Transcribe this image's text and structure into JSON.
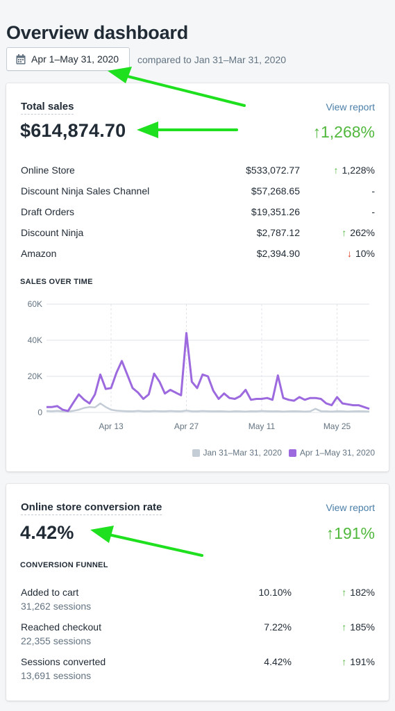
{
  "page": {
    "title": "Overview dashboard"
  },
  "date_range": {
    "selected": "Apr 1–May 31, 2020",
    "comparison": "compared to Jan 31–Mar 31, 2020",
    "icon": "calendar-icon"
  },
  "total_sales": {
    "title": "Total sales",
    "view_report": "View report",
    "value": "$614,874.70",
    "change": "1,268%",
    "change_direction": "up",
    "rows": [
      {
        "label": "Online Store",
        "value": "$533,072.77",
        "change": "1,228%",
        "direction": "up"
      },
      {
        "label": "Discount Ninja Sales Channel",
        "value": "$57,268.65",
        "change": "-",
        "direction": "none"
      },
      {
        "label": "Draft Orders",
        "value": "$19,351.26",
        "change": "-",
        "direction": "none"
      },
      {
        "label": "Discount Ninja",
        "value": "$2,787.12",
        "change": "262%",
        "direction": "up"
      },
      {
        "label": "Amazon",
        "value": "$2,394.90",
        "change": "10%",
        "direction": "down"
      }
    ]
  },
  "sales_over_time": {
    "heading": "SALES OVER TIME",
    "legend": {
      "previous": "Jan 31–Mar 31, 2020",
      "current": "Apr 1–May 31, 2020"
    }
  },
  "chart_data": {
    "type": "line",
    "ylabel": "",
    "xlabel": "",
    "ylim": [
      0,
      60000
    ],
    "y_ticks": [
      "0",
      "20K",
      "40K",
      "60K"
    ],
    "x_ticks": [
      {
        "label": "Apr 13",
        "index": 12
      },
      {
        "label": "Apr 27",
        "index": 26
      },
      {
        "label": "May 11",
        "index": 40
      },
      {
        "label": "May 25",
        "index": 54
      }
    ],
    "grid": true,
    "legend_position": "bottom-right",
    "series": [
      {
        "name": "Apr 1–May 31, 2020",
        "color": "#9c6ade",
        "values": [
          3000,
          3000,
          3500,
          1500,
          800,
          5500,
          10000,
          7000,
          5000,
          10000,
          21000,
          13000,
          13500,
          22000,
          28500,
          21000,
          13500,
          11000,
          7500,
          10000,
          21500,
          17000,
          10500,
          12500,
          11000,
          9500,
          44000,
          17000,
          13500,
          21000,
          20000,
          12000,
          7500,
          10500,
          8000,
          7500,
          9000,
          12500,
          7000,
          7500,
          7500,
          8000,
          7000,
          20500,
          8000,
          7000,
          6500,
          8500,
          7000,
          8000,
          8000,
          7500,
          5000,
          4000,
          8500,
          5000,
          4500,
          4000,
          4000,
          3000,
          2000
        ]
      },
      {
        "name": "Jan 31–Mar 31, 2020",
        "color": "#c4cdd5",
        "values": [
          800,
          700,
          900,
          600,
          500,
          900,
          1500,
          2500,
          3000,
          2800,
          5000,
          3000,
          1500,
          1000,
          800,
          700,
          600,
          900,
          700,
          600,
          800,
          700,
          600,
          800,
          700,
          600,
          1000,
          700,
          600,
          800,
          700,
          600,
          700,
          600,
          500,
          700,
          600,
          500,
          700,
          600,
          800,
          700,
          600,
          700,
          500,
          600,
          700,
          600,
          500,
          600,
          2000,
          700,
          600,
          500,
          700,
          600,
          500,
          600,
          700,
          600,
          500
        ]
      }
    ]
  },
  "conversion": {
    "title": "Online store conversion rate",
    "view_report": "View report",
    "value": "4.42%",
    "change": "191%",
    "change_direction": "up",
    "funnel_heading": "CONVERSION FUNNEL",
    "rows": [
      {
        "label": "Added to cart",
        "sessions": "31,262 sessions",
        "value": "10.10%",
        "change": "182%",
        "direction": "up"
      },
      {
        "label": "Reached checkout",
        "sessions": "22,355 sessions",
        "value": "7.22%",
        "change": "185%",
        "direction": "up"
      },
      {
        "label": "Sessions converted",
        "sessions": "13,691 sessions",
        "value": "4.42%",
        "change": "191%",
        "direction": "up"
      }
    ]
  },
  "colors": {
    "positive": "#50b83c",
    "negative": "#de3618",
    "link": "#4a7ea8",
    "annotation_arrow": "#1ee01e"
  }
}
